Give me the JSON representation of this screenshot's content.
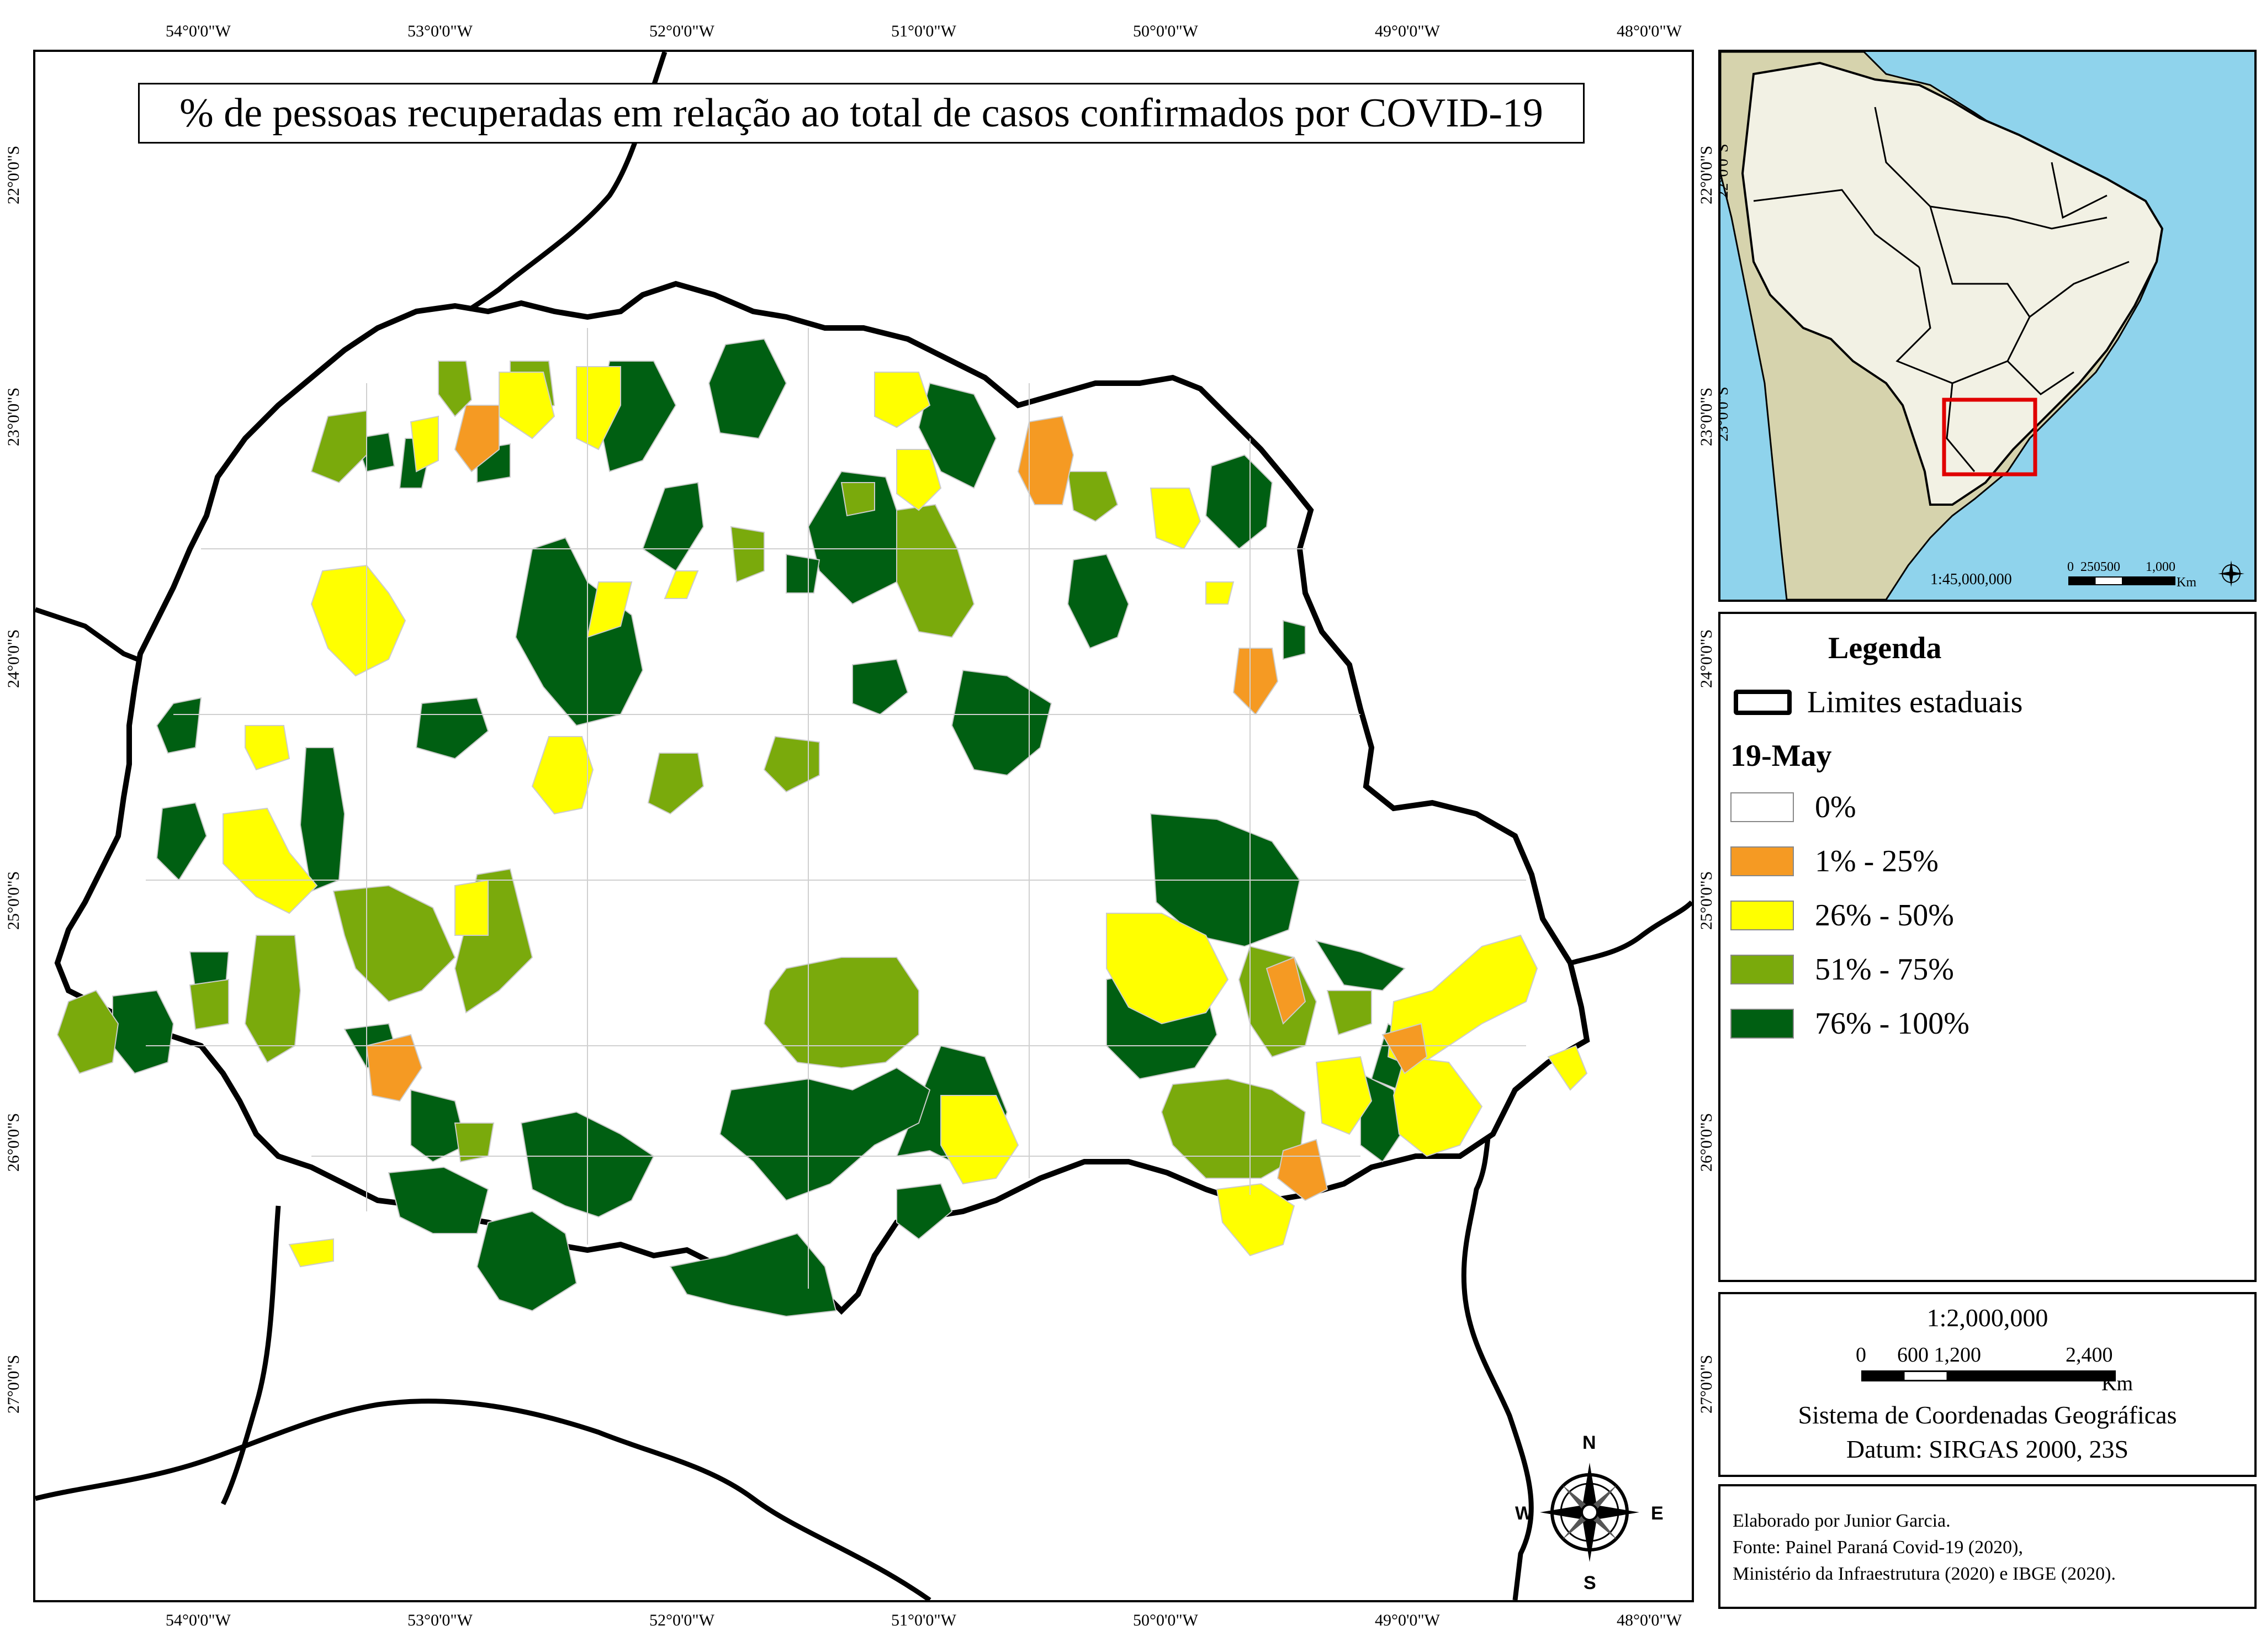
{
  "map": {
    "title": "% de pessoas recuperadas em relação ao total de casos confirmados por COVID-19",
    "lon_ticks": [
      "54°0'0\"W",
      "53°0'0\"W",
      "52°0'0\"W",
      "51°0'0\"W",
      "50°0'0\"W",
      "49°0'0\"W",
      "48°0'0\"W"
    ],
    "lat_ticks": [
      "22°0'0\"S",
      "23°0'0\"S",
      "24°0'0\"S",
      "25°0'0\"S",
      "26°0'0\"S",
      "27°0'0\"S"
    ],
    "compass": {
      "n": "N",
      "s": "S",
      "e": "E",
      "w": "W"
    }
  },
  "inset": {
    "lat_ticks": [
      "22°0'0\"S",
      "23°0'0\"S"
    ],
    "scale_text": "1:45,000,000",
    "bar_labels": [
      "0",
      "250500",
      "1,000"
    ],
    "bar_unit": "Km",
    "colors": {
      "ocean": "#8fd3ec",
      "brazil": "#f2f1e4",
      "other_land": "#d6d3ad",
      "highlight": "#e00000"
    }
  },
  "legend": {
    "title": "Legenda",
    "boundary_label": "Limites estaduais",
    "date_label": "19-May",
    "classes": [
      {
        "label": "0%",
        "color": "#ffffff"
      },
      {
        "label": "1% - 25%",
        "color": "#f59a23"
      },
      {
        "label": "26% - 50%",
        "color": "#ffff00"
      },
      {
        "label": "51% - 75%",
        "color": "#7aaa0c"
      },
      {
        "label": "76% - 100%",
        "color": "#005f12"
      }
    ]
  },
  "scale": {
    "ratio": "1:2,000,000",
    "bar_labels": [
      "0",
      "600 1,200",
      "2,400"
    ],
    "unit": "Km",
    "crs": "Sistema de Coordenadas Geográficas",
    "datum": "Datum: SIRGAS 2000, 23S"
  },
  "credits": {
    "lines": [
      "Elaborado por Junior Garcia.",
      "Fonte: Painel Paraná Covid-19 (2020),",
      "Ministério da Infraestrutura (2020) e IBGE (2020)."
    ]
  }
}
